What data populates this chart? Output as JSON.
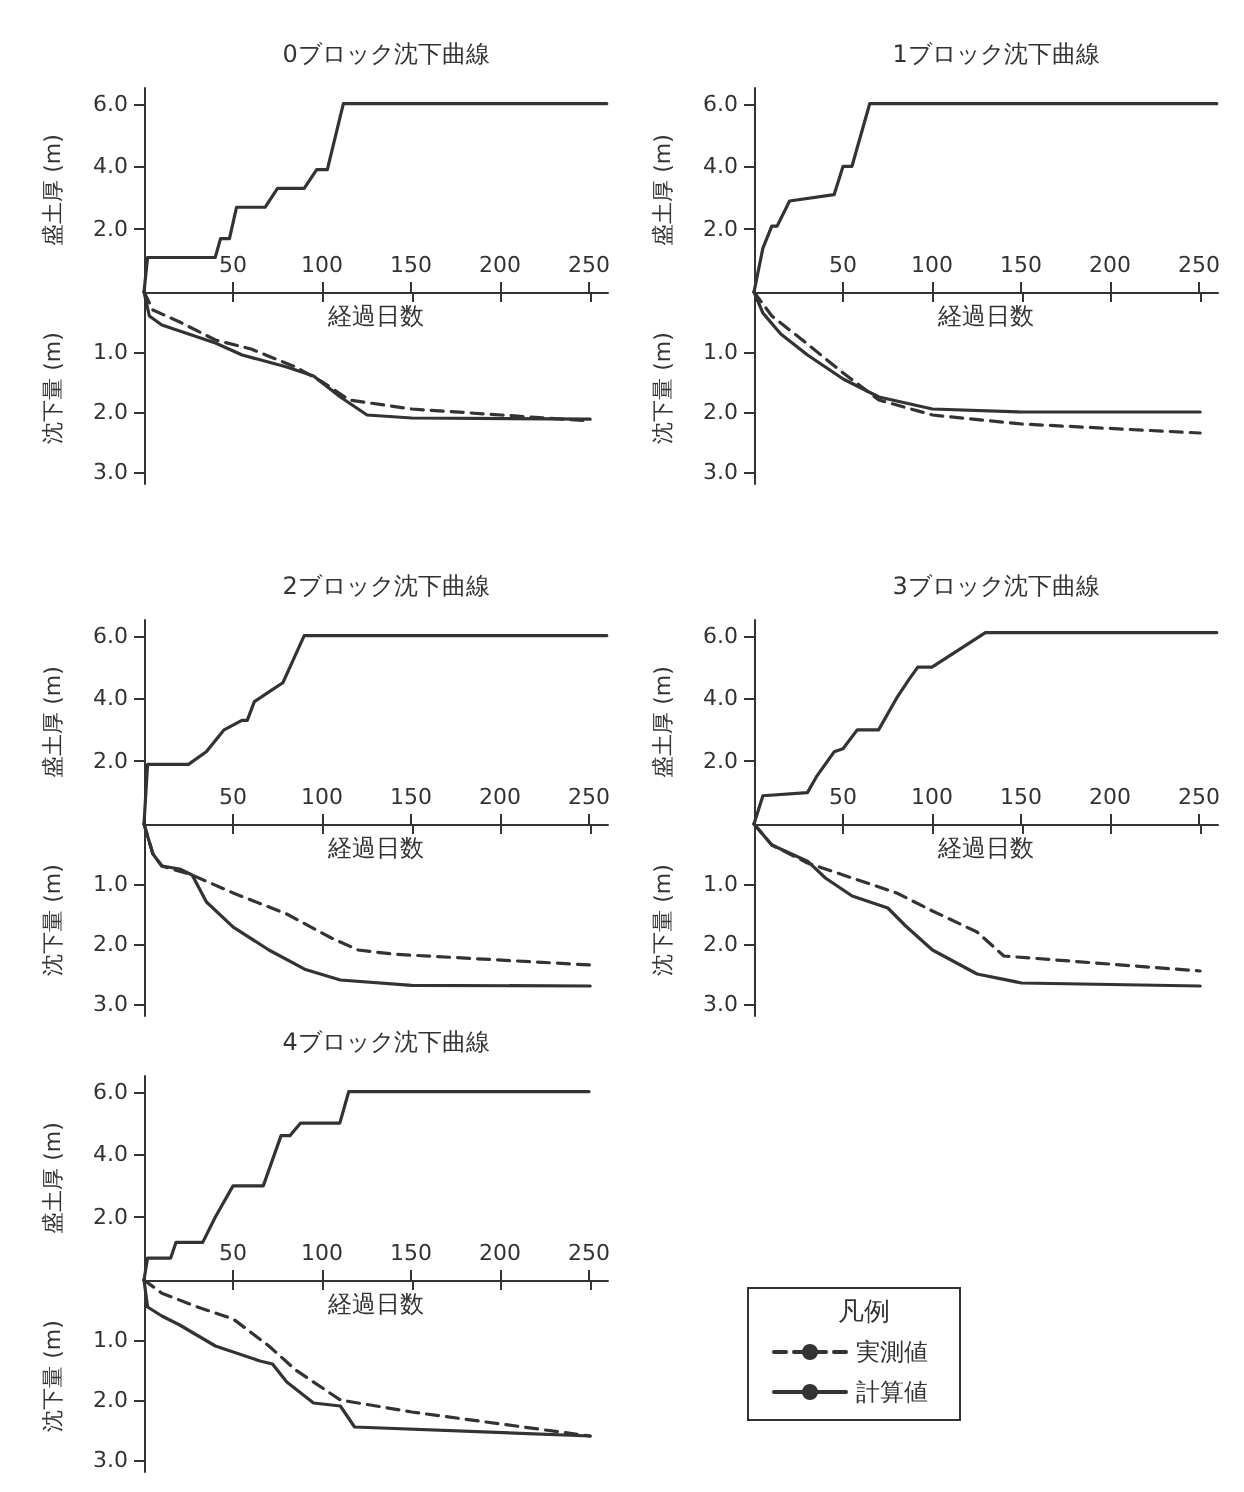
{
  "chart_data": [
    {
      "type": "line",
      "title": "0ブロック沈下曲線",
      "ylabel": "盛土厚 (m)",
      "xlim": [
        0,
        260
      ],
      "xticks": [
        50,
        100,
        150,
        200,
        250
      ],
      "ylim": [
        0,
        6.5
      ],
      "yticks": [
        {
          "value": 2,
          "label": "2.0"
        },
        {
          "value": 4,
          "label": "4.0"
        },
        {
          "value": 6,
          "label": "6.0"
        }
      ],
      "line_style": "solid",
      "series": [
        {
          "color": "#333333",
          "x": [
            0,
            2,
            40,
            43,
            48,
            52,
            68,
            75,
            90,
            97,
            103,
            112,
            260
          ],
          "values": [
            0,
            1.1,
            1.1,
            1.7,
            1.7,
            2.7,
            2.7,
            3.3,
            3.3,
            3.9,
            3.9,
            6.0,
            6.0
          ]
        }
      ]
    },
    {
      "type": "line",
      "xlabel": "経過日数",
      "ylabel": "沈下量 (m)",
      "xlim": [
        0,
        260
      ],
      "xticks": [
        50,
        100,
        150,
        200,
        250
      ],
      "ylim": [
        3.2,
        0
      ],
      "yticks": [
        {
          "value": 1,
          "label": "1.0"
        },
        {
          "value": 2,
          "label": "2.0"
        },
        {
          "value": 3,
          "label": "3.0"
        }
      ],
      "tick_labels": "y",
      "series": [
        {
          "color": "#333333",
          "line_style": "dashed",
          "x": [
            0,
            5,
            20,
            40,
            60,
            85,
            100,
            115,
            150,
            200,
            250
          ],
          "values": [
            0,
            0.3,
            0.5,
            0.8,
            0.95,
            1.25,
            1.5,
            1.8,
            1.95,
            2.05,
            2.15
          ]
        },
        {
          "color": "#333333",
          "line_style": "solid",
          "x": [
            0,
            3,
            10,
            40,
            55,
            80,
            95,
            110,
            125,
            150,
            250
          ],
          "values": [
            0,
            0.4,
            0.55,
            0.85,
            1.05,
            1.25,
            1.4,
            1.75,
            2.05,
            2.1,
            2.12
          ]
        }
      ]
    },
    {
      "type": "line",
      "title": "1ブロック沈下曲線",
      "ylabel": "盛土厚 (m)",
      "xlim": [
        0,
        260
      ],
      "xticks": [
        50,
        100,
        150,
        200,
        250
      ],
      "ylim": [
        0,
        6.5
      ],
      "yticks": [
        {
          "value": 2,
          "label": "2.0"
        },
        {
          "value": 4,
          "label": "4.0"
        },
        {
          "value": 6,
          "label": "6.0"
        }
      ],
      "line_style": "solid",
      "series": [
        {
          "color": "#333333",
          "x": [
            0,
            5,
            10,
            13,
            20,
            45,
            50,
            55,
            65,
            260
          ],
          "values": [
            0,
            1.4,
            2.1,
            2.1,
            2.9,
            3.1,
            4.0,
            4.0,
            6.0,
            6.0
          ]
        }
      ]
    },
    {
      "type": "line",
      "xlabel": "経過日数",
      "ylabel": "沈下量 (m)",
      "xlim": [
        0,
        260
      ],
      "xticks": [
        50,
        100,
        150,
        200,
        250
      ],
      "ylim": [
        3.2,
        0
      ],
      "yticks": [
        {
          "value": 1,
          "label": "1.0"
        },
        {
          "value": 2,
          "label": "2.0"
        },
        {
          "value": 3,
          "label": "3.0"
        }
      ],
      "tick_labels": "y",
      "series": [
        {
          "color": "#333333",
          "line_style": "dashed",
          "x": [
            0,
            10,
            25,
            50,
            70,
            100,
            150,
            250
          ],
          "values": [
            0,
            0.4,
            0.75,
            1.35,
            1.8,
            2.05,
            2.2,
            2.35
          ]
        },
        {
          "color": "#333333",
          "line_style": "solid",
          "x": [
            0,
            5,
            15,
            30,
            50,
            70,
            100,
            150,
            250
          ],
          "values": [
            0,
            0.35,
            0.7,
            1.05,
            1.45,
            1.75,
            1.95,
            2.0,
            2.0
          ]
        }
      ]
    },
    {
      "type": "line",
      "title": "2ブロック沈下曲線",
      "ylabel": "盛土厚 (m)",
      "xlim": [
        0,
        260
      ],
      "xticks": [
        50,
        100,
        150,
        200,
        250
      ],
      "ylim": [
        0,
        6.5
      ],
      "yticks": [
        {
          "value": 2,
          "label": "2.0"
        },
        {
          "value": 4,
          "label": "4.0"
        },
        {
          "value": 6,
          "label": "6.0"
        }
      ],
      "line_style": "solid",
      "series": [
        {
          "color": "#333333",
          "x": [
            0,
            2,
            25,
            35,
            45,
            55,
            58,
            62,
            70,
            78,
            82,
            90,
            260
          ],
          "values": [
            0,
            1.9,
            1.9,
            2.3,
            3.0,
            3.3,
            3.3,
            3.9,
            4.2,
            4.5,
            5.0,
            6.0,
            6.0
          ]
        }
      ]
    },
    {
      "type": "line",
      "xlabel": "経過日数",
      "ylabel": "沈下量 (m)",
      "xlim": [
        0,
        260
      ],
      "xticks": [
        50,
        100,
        150,
        200,
        250
      ],
      "ylim": [
        3.2,
        0
      ],
      "yticks": [
        {
          "value": 1,
          "label": "1.0"
        },
        {
          "value": 2,
          "label": "2.0"
        },
        {
          "value": 3,
          "label": "3.0"
        }
      ],
      "tick_labels": "y",
      "series": [
        {
          "color": "#333333",
          "line_style": "dashed",
          "x": [
            0,
            5,
            10,
            27,
            50,
            80,
            105,
            120,
            140,
            250
          ],
          "values": [
            0,
            0.5,
            0.7,
            0.85,
            1.15,
            1.5,
            1.9,
            2.1,
            2.17,
            2.35
          ]
        },
        {
          "color": "#333333",
          "line_style": "solid",
          "x": [
            0,
            5,
            10,
            20,
            27,
            35,
            50,
            70,
            90,
            110,
            150,
            250
          ],
          "values": [
            0,
            0.5,
            0.7,
            0.75,
            0.85,
            1.3,
            1.72,
            2.1,
            2.42,
            2.6,
            2.69,
            2.7
          ]
        }
      ]
    },
    {
      "type": "line",
      "title": "3ブロック沈下曲線",
      "ylabel": "盛土厚 (m)",
      "xlim": [
        0,
        260
      ],
      "xticks": [
        50,
        100,
        150,
        200,
        250
      ],
      "ylim": [
        0,
        6.5
      ],
      "yticks": [
        {
          "value": 2,
          "label": "2.0"
        },
        {
          "value": 4,
          "label": "4.0"
        },
        {
          "value": 6,
          "label": "6.0"
        }
      ],
      "line_style": "solid",
      "series": [
        {
          "color": "#333333",
          "x": [
            0,
            5,
            30,
            35,
            45,
            50,
            58,
            70,
            80,
            87,
            92,
            100,
            130,
            260
          ],
          "values": [
            0,
            0.9,
            1.0,
            1.5,
            2.3,
            2.4,
            3.0,
            3.0,
            4.0,
            4.6,
            5.0,
            5.0,
            6.1,
            6.1
          ]
        }
      ]
    },
    {
      "type": "line",
      "xlabel": "経過日数",
      "ylabel": "沈下量 (m)",
      "xlim": [
        0,
        260
      ],
      "xticks": [
        50,
        100,
        150,
        200,
        250
      ],
      "ylim": [
        3.2,
        0
      ],
      "yticks": [
        {
          "value": 1,
          "label": "1.0"
        },
        {
          "value": 2,
          "label": "2.0"
        },
        {
          "value": 3,
          "label": "3.0"
        }
      ],
      "tick_labels": "y",
      "series": [
        {
          "color": "#333333",
          "line_style": "dashed",
          "x": [
            0,
            10,
            30,
            50,
            80,
            100,
            125,
            140,
            250
          ],
          "values": [
            0,
            0.35,
            0.65,
            0.85,
            1.15,
            1.45,
            1.8,
            2.2,
            2.45
          ]
        },
        {
          "color": "#333333",
          "line_style": "solid",
          "x": [
            0,
            10,
            30,
            40,
            55,
            75,
            85,
            100,
            125,
            150,
            250
          ],
          "values": [
            0,
            0.35,
            0.62,
            0.9,
            1.2,
            1.4,
            1.7,
            2.1,
            2.5,
            2.65,
            2.7
          ]
        }
      ]
    },
    {
      "type": "line",
      "title": "4ブロック沈下曲線",
      "ylabel": "盛土厚 (m)",
      "xlim": [
        0,
        260
      ],
      "xticks": [
        50,
        100,
        150,
        200,
        250
      ],
      "ylim": [
        0,
        6.5
      ],
      "yticks": [
        {
          "value": 2,
          "label": "2.0"
        },
        {
          "value": 4,
          "label": "4.0"
        },
        {
          "value": 6,
          "label": "6.0"
        }
      ],
      "line_style": "solid",
      "series": [
        {
          "color": "#333333",
          "x": [
            0,
            2,
            15,
            18,
            33,
            40,
            50,
            67,
            77,
            82,
            88,
            110,
            115,
            250
          ],
          "values": [
            0,
            0.7,
            0.7,
            1.2,
            1.2,
            2.0,
            3.0,
            3.0,
            4.6,
            4.6,
            5.0,
            5.0,
            6.0,
            6.0
          ]
        }
      ]
    },
    {
      "type": "line",
      "xlabel": "経過日数",
      "ylabel": "沈下量 (m)",
      "xlim": [
        0,
        260
      ],
      "xticks": [
        50,
        100,
        150,
        200,
        250
      ],
      "ylim": [
        3.2,
        0
      ],
      "yticks": [
        {
          "value": 1,
          "label": "1.0"
        },
        {
          "value": 2,
          "label": "2.0"
        },
        {
          "value": 3,
          "label": "3.0"
        }
      ],
      "tick_labels": "y",
      "legend": "right",
      "legend_title": "凡例",
      "series": [
        {
          "name": "実測値",
          "color": "#333333",
          "line_style": "dashed",
          "x": [
            0,
            10,
            30,
            50,
            70,
            85,
            110,
            150,
            200,
            250
          ],
          "values": [
            0,
            0.22,
            0.45,
            0.65,
            1.1,
            1.5,
            2.0,
            2.2,
            2.4,
            2.6
          ]
        },
        {
          "name": "計算値",
          "color": "#333333",
          "line_style": "solid",
          "x": [
            0,
            2,
            10,
            20,
            40,
            65,
            72,
            80,
            95,
            110,
            118,
            250
          ],
          "values": [
            0,
            0.45,
            0.6,
            0.75,
            1.1,
            1.35,
            1.4,
            1.7,
            2.05,
            2.1,
            2.45,
            2.6
          ]
        }
      ]
    }
  ]
}
